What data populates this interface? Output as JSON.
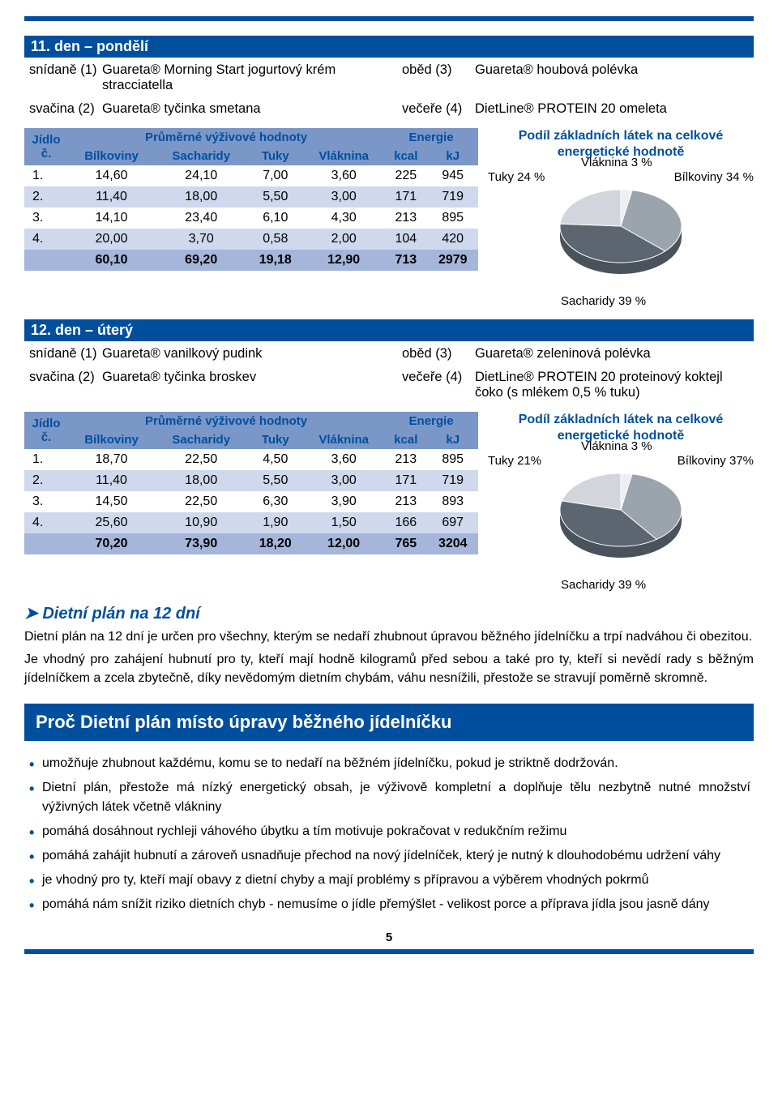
{
  "page_number": "5",
  "colors": {
    "brand_blue": "#004f9f",
    "header_blue": "#7b97c8",
    "row_alt": "#cfd8ec",
    "row_total": "#a5b6da",
    "pie_dark": "#5d6670",
    "pie_mid": "#9ba3ad",
    "pie_light": "#d2d6dc"
  },
  "day11": {
    "title": "11. den – pondělí",
    "meals": {
      "m1_label": "snídaně (1)",
      "m1_food": "Guareta® Morning Start jogurtový krém stracciatella",
      "m3_label": "oběd (3)",
      "m3_food": "Guareta® houbová polévka",
      "m2_label": "svačina (2)",
      "m2_food": "Guareta® tyčinka smetana",
      "m4_label": "večeře (4)",
      "m4_food": "DietLine® PROTEIN 20 omeleta"
    },
    "table": {
      "head_main": "Průměrné výživové hodnoty",
      "head_energy": "Energie",
      "head_jidlo": "Jídlo č.",
      "sub": [
        "Bílkoviny",
        "Sacharidy",
        "Tuky",
        "Vláknina",
        "kcal",
        "kJ"
      ],
      "rows": [
        {
          "idx": "1.",
          "v": [
            "14,60",
            "24,10",
            "7,00",
            "3,60",
            "225",
            "945"
          ]
        },
        {
          "idx": "2.",
          "v": [
            "11,40",
            "18,00",
            "5,50",
            "3,00",
            "171",
            "719"
          ]
        },
        {
          "idx": "3.",
          "v": [
            "14,10",
            "23,40",
            "6,10",
            "4,30",
            "213",
            "895"
          ]
        },
        {
          "idx": "4.",
          "v": [
            "20,00",
            "3,70",
            "0,58",
            "2,00",
            "104",
            "420"
          ]
        }
      ],
      "total": [
        "60,10",
        "69,20",
        "19,18",
        "12,90",
        "713",
        "2979"
      ]
    },
    "chart": {
      "title_l1": "Podíl základních látek na celkové",
      "title_l2": "energetické hodnotě",
      "pie_slices": [
        {
          "label": "Sacharidy 39 %",
          "percent": 39,
          "color": "#5d6670"
        },
        {
          "label": "Bílkoviny 34 %",
          "percent": 34,
          "color": "#9ba3ad"
        },
        {
          "label": "Tuky 24 %",
          "percent": 24,
          "color": "#d2d6dc"
        },
        {
          "label": "Vláknina 3 %",
          "percent": 3,
          "color": "#eceef2"
        }
      ],
      "label_tuky": "Tuky 24 %",
      "label_vlak": "Vláknina 3 %",
      "label_bilk": "Bílkoviny 34 %",
      "label_sach": "Sacharidy 39 %"
    }
  },
  "day12": {
    "title": "12. den – úterý",
    "meals": {
      "m1_label": "snídaně (1)",
      "m1_food": "Guareta® vanilkový pudink",
      "m3_label": "oběd (3)",
      "m3_food": "Guareta® zeleninová polévka",
      "m2_label": "svačina (2)",
      "m2_food": "Guareta® tyčinka broskev",
      "m4_label": "večeře (4)",
      "m4_food": "DietLine® PROTEIN 20 proteinový koktejl čoko (s  mlékem 0,5 % tuku)"
    },
    "table": {
      "head_main": "Průměrné výživové hodnoty",
      "head_energy": "Energie",
      "head_jidlo": "Jídlo č.",
      "sub": [
        "Bílkoviny",
        "Sacharidy",
        "Tuky",
        "Vláknina",
        "kcal",
        "kJ"
      ],
      "rows": [
        {
          "idx": "1.",
          "v": [
            "18,70",
            "22,50",
            "4,50",
            "3,60",
            "213",
            "895"
          ]
        },
        {
          "idx": "2.",
          "v": [
            "11,40",
            "18,00",
            "5,50",
            "3,00",
            "171",
            "719"
          ]
        },
        {
          "idx": "3.",
          "v": [
            "14,50",
            "22,50",
            "6,30",
            "3,90",
            "213",
            "893"
          ]
        },
        {
          "idx": "4.",
          "v": [
            "25,60",
            "10,90",
            "1,90",
            "1,50",
            "166",
            "697"
          ]
        }
      ],
      "total": [
        "70,20",
        "73,90",
        "18,20",
        "12,00",
        "765",
        "3204"
      ]
    },
    "chart": {
      "title_l1": "Podíl základních látek na celkové",
      "title_l2": "energetické hodnotě",
      "pie_slices": [
        {
          "label": "Sacharidy 39 %",
          "percent": 39,
          "color": "#5d6670"
        },
        {
          "label": "Bílkoviny 37%",
          "percent": 37,
          "color": "#9ba3ad"
        },
        {
          "label": "Tuky 21%",
          "percent": 21,
          "color": "#d2d6dc"
        },
        {
          "label": "Vláknina 3 %",
          "percent": 3,
          "color": "#eceef2"
        }
      ],
      "label_tuky": "Tuky 21%",
      "label_vlak": "Vláknina 3 %",
      "label_bilk": "Bílkoviny 37%",
      "label_sach": "Sacharidy 39 %"
    }
  },
  "article": {
    "heading": "Dietní plán na 12 dní",
    "p1": "Dietní plán na 12 dní je určen pro všechny, kterým se nedaří zhubnout úpravou běžného jídelníčku a trpí nadváhou či obezitou.",
    "p2": "Je vhodný pro zahájení hubnutí pro ty, kteří mají hodně kilogramů před sebou a také pro ty, kteří si nevědí rady s běžným jídelníčkem a zcela zbytečně, díky nevědomým dietním chybám, váhu nesnížili, přestože se stravují poměrně skromně."
  },
  "banner": "Proč Dietní plán místo úpravy běžného jídelníčku",
  "bullets": [
    "umožňuje zhubnout každému, komu se to nedaří na běžném jídelníčku, pokud je striktně dodržován.",
    "Dietní plán, přestože má nízký energetický obsah, je výživově kompletní a doplňuje tělu nezbytně nutné množství výživných látek včetně vlákniny",
    "pomáhá dosáhnout rychleji váhového úbytku a tím motivuje pokračovat v redukčním režimu",
    "pomáhá zahájit hubnutí a zároveň usnadňuje přechod na nový jídelníček, který je nutný k dlouhodobému udržení váhy",
    "je vhodný pro ty, kteří mají obavy z dietní chyby a mají problémy s přípravou a výběrem vhodných pokrmů",
    "pomáhá nám snížit riziko dietních chyb - nemusíme o jídle přemýšlet - velikost porce a příprava jídla jsou jasně dány"
  ]
}
